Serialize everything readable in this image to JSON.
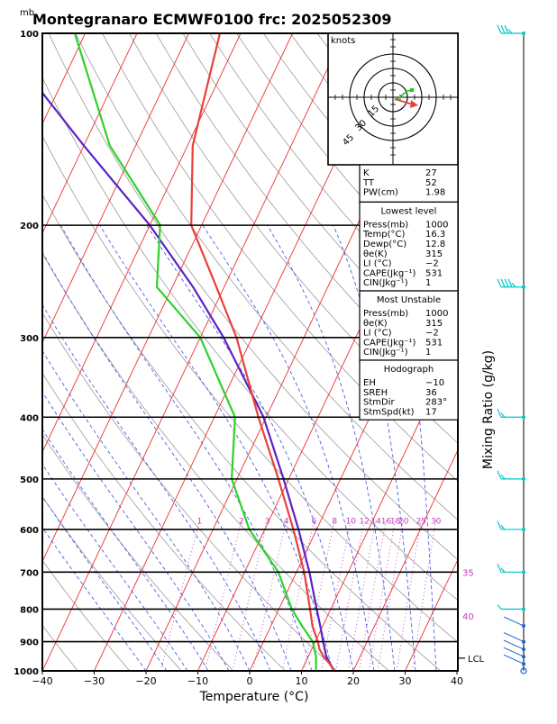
{
  "chart_data": {
    "type": "skew-t",
    "title": "Montegranaro ECMWF0100 frc: 2025052309",
    "y_unit_label": "mb",
    "xlabel": "Temperature (°C)",
    "right_label": "Mixing Ratio (g/kg)",
    "x_ticks": [
      -40,
      -30,
      -20,
      -10,
      0,
      10,
      20,
      30,
      40
    ],
    "p_ticks": [
      100,
      200,
      300,
      400,
      500,
      600,
      700,
      800,
      900,
      1000
    ],
    "xlim": [
      -40,
      40
    ],
    "plim": [
      1000,
      100
    ],
    "temperature_profile": [
      {
        "p": 1000,
        "t": 16.3
      },
      {
        "p": 975,
        "t": 14.8
      },
      {
        "p": 950,
        "t": 13.0
      },
      {
        "p": 925,
        "t": 11.5
      },
      {
        "p": 900,
        "t": 10.5
      },
      {
        "p": 850,
        "t": 8.0
      },
      {
        "p": 800,
        "t": 6.0
      },
      {
        "p": 700,
        "t": 1.5
      },
      {
        "p": 600,
        "t": -4.5
      },
      {
        "p": 500,
        "t": -12.0
      },
      {
        "p": 400,
        "t": -21.5
      },
      {
        "p": 300,
        "t": -33.0
      },
      {
        "p": 250,
        "t": -41.5
      },
      {
        "p": 200,
        "t": -52.0
      },
      {
        "p": 150,
        "t": -59.0
      },
      {
        "p": 100,
        "t": -64.0
      }
    ],
    "dewpoint_profile": [
      {
        "p": 1000,
        "t": 12.8
      },
      {
        "p": 950,
        "t": 11.5
      },
      {
        "p": 900,
        "t": 9.5
      },
      {
        "p": 850,
        "t": 6.0
      },
      {
        "p": 800,
        "t": 2.5
      },
      {
        "p": 700,
        "t": -3.5
      },
      {
        "p": 600,
        "t": -13.0
      },
      {
        "p": 500,
        "t": -21.0
      },
      {
        "p": 400,
        "t": -26.0
      },
      {
        "p": 300,
        "t": -40.0
      },
      {
        "p": 250,
        "t": -53.0
      },
      {
        "p": 200,
        "t": -58.0
      },
      {
        "p": 150,
        "t": -75.0
      },
      {
        "p": 100,
        "t": -92.0
      }
    ],
    "parcel_profile": [
      {
        "p": 1000,
        "t": 16.3
      },
      {
        "p": 950,
        "t": 13.5
      },
      {
        "p": 900,
        "t": 11.5
      },
      {
        "p": 850,
        "t": 9.5
      },
      {
        "p": 800,
        "t": 7.3
      },
      {
        "p": 700,
        "t": 2.5
      },
      {
        "p": 600,
        "t": -3.5
      },
      {
        "p": 500,
        "t": -11.0
      },
      {
        "p": 400,
        "t": -20.5
      },
      {
        "p": 300,
        "t": -35.5
      },
      {
        "p": 250,
        "t": -46.0
      },
      {
        "p": 200,
        "t": -60.0
      },
      {
        "p": 150,
        "t": -80.0
      },
      {
        "p": 120,
        "t": -95.0
      }
    ],
    "mixing_ratio_labels": [
      "1",
      "2",
      "3",
      "4",
      "6",
      "8",
      "10",
      "12",
      "14",
      "16",
      "18",
      "20",
      "25",
      "30"
    ],
    "theta_e_labels": [
      "35",
      "40"
    ],
    "lcl_label": "LCL",
    "lcl_pressure": 955,
    "hodograph": {
      "units_label": "knots",
      "ring_labels": [
        "15",
        "30",
        "45"
      ]
    },
    "indices_top": [
      {
        "label": "K",
        "value": "27"
      },
      {
        "label": "TT",
        "value": "52"
      },
      {
        "label": "PW(cm)",
        "value": "1.98"
      }
    ],
    "sections": [
      {
        "title": "Lowest level",
        "rows": [
          {
            "label": "Press(mb)",
            "value": "1000"
          },
          {
            "label": "Temp(°C)",
            "value": "16.3"
          },
          {
            "label": "Dewp(°C)",
            "value": "12.8"
          },
          {
            "label": "θe(K)",
            "value": "315"
          },
          {
            "label": "LI (°C)",
            "value": "−2"
          },
          {
            "label": "CAPE(Jkg⁻¹)",
            "value": "531"
          },
          {
            "label": "CIN(Jkg⁻¹)",
            "value": "1"
          }
        ]
      },
      {
        "title": "Most Unstable",
        "rows": [
          {
            "label": "Press(mb)",
            "value": "1000"
          },
          {
            "label": "θe(K)",
            "value": "315"
          },
          {
            "label": "LI (°C)",
            "value": "−2"
          },
          {
            "label": "CAPE(Jkg⁻¹)",
            "value": "531"
          },
          {
            "label": "CIN(Jkg⁻¹)",
            "value": "1"
          }
        ]
      },
      {
        "title": "Hodograph",
        "rows": [
          {
            "label": "EH",
            "value": "−10"
          },
          {
            "label": "SREH",
            "value": "36"
          },
          {
            "label": "StmDir",
            "value": "283°"
          },
          {
            "label": "StmSpd(kt)",
            "value": "17"
          }
        ]
      }
    ],
    "colors": {
      "temperature": "#e8413a",
      "dewpoint": "#2fd12a",
      "parcel": "#5b22c8",
      "isotherm": "#ee3030",
      "dry_adiabat": "#9a9a9a",
      "moist_adiabat": "#3050e0",
      "mixing_ratio": "#c040c0",
      "wind_barb": "#00c8c8",
      "axes": "#000000"
    }
  }
}
